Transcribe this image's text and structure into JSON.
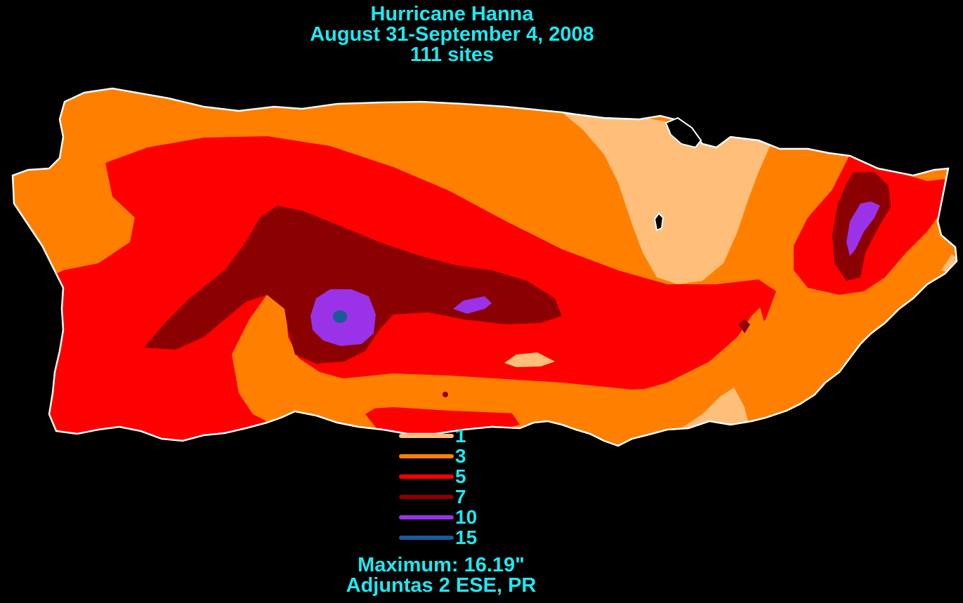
{
  "title": {
    "line1": "Hurricane Hanna",
    "line2": "August 31-September 4, 2008",
    "line3": "111 sites"
  },
  "legend": [
    {
      "label": "1",
      "color": "#ffbe7a"
    },
    {
      "label": "3",
      "color": "#ff8000"
    },
    {
      "label": "5",
      "color": "#ff0000"
    },
    {
      "label": "7",
      "color": "#8b0000"
    },
    {
      "label": "10",
      "color": "#9a32e8"
    },
    {
      "label": "15",
      "color": "#1a5a96"
    }
  ],
  "footer": {
    "maximum": "Maximum:  16.19\"",
    "location": "Adjuntas 2 ESE, PR"
  },
  "colors": {
    "background": "#000000",
    "text": "#1ee8f0",
    "coastline": "#ffffff"
  }
}
